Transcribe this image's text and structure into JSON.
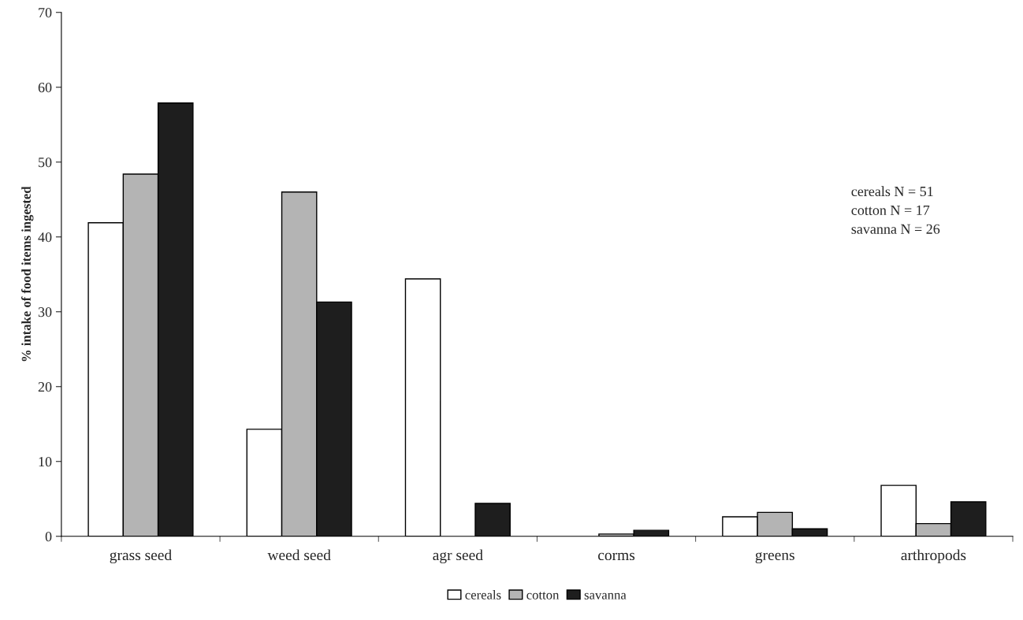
{
  "chart_data": {
    "type": "bar",
    "ylabel": "% intake of food items ingested",
    "categories": [
      "grass seed",
      "weed seed",
      "agr seed",
      "corms",
      "greens",
      "arthropods"
    ],
    "series": [
      {
        "name": "cereals",
        "color": "#ffffff",
        "values": [
          41.9,
          14.3,
          34.4,
          null,
          2.6,
          6.8
        ]
      },
      {
        "name": "cotton",
        "color": "#b4b4b4",
        "values": [
          48.4,
          46.0,
          null,
          0.3,
          3.2,
          1.7
        ]
      },
      {
        "name": "savanna",
        "color": "#1e1e1e",
        "values": [
          57.9,
          31.3,
          4.4,
          0.8,
          1.0,
          4.6
        ]
      }
    ],
    "ylim": [
      0,
      70
    ],
    "yticks": [
      0,
      10,
      20,
      30,
      40,
      50,
      60,
      70
    ],
    "grid": false,
    "legend": "bottom",
    "annotations": [
      "cereals N = 51\ncotton N = 17\nsavanna N = 26"
    ]
  }
}
